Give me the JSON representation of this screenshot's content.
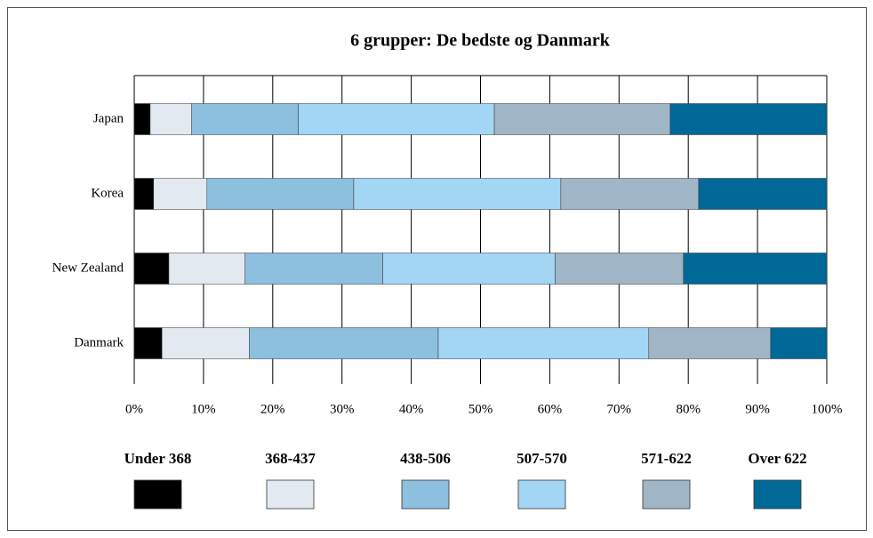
{
  "chart_data": {
    "type": "stacked-bar-horizontal",
    "title": "6 grupper: De bedste og Danmark",
    "categories": [
      "Japan",
      "Korea",
      "New Zealand",
      "Danmark"
    ],
    "series": [
      {
        "name": "Under 368",
        "color": "#000000",
        "values": [
          2.3,
          2.8,
          5.0,
          4.0
        ]
      },
      {
        "name": "368-437",
        "color": "#e2e9f0",
        "values": [
          6.0,
          7.7,
          11.0,
          12.6
        ]
      },
      {
        "name": "438-506",
        "color": "#8dbfdf",
        "values": [
          15.4,
          21.2,
          19.9,
          27.3
        ]
      },
      {
        "name": "507-570",
        "color": "#a3d5f5",
        "values": [
          28.3,
          29.9,
          24.9,
          30.4
        ]
      },
      {
        "name": "571-622",
        "color": "#a0b6c6",
        "values": [
          25.4,
          19.9,
          18.5,
          17.6
        ]
      },
      {
        "name": "Over 622",
        "color": "#006896",
        "values": [
          22.6,
          18.5,
          20.7,
          8.1
        ]
      }
    ],
    "xlim": [
      0,
      100
    ],
    "xticks": [
      {
        "value": 0,
        "label": "0%"
      },
      {
        "value": 10,
        "label": "10%"
      },
      {
        "value": 20,
        "label": "20%"
      },
      {
        "value": 30,
        "label": "30%"
      },
      {
        "value": 40,
        "label": "40%"
      },
      {
        "value": 50,
        "label": "50%"
      },
      {
        "value": 60,
        "label": "60%"
      },
      {
        "value": 70,
        "label": "70%"
      },
      {
        "value": 80,
        "label": "80%"
      },
      {
        "value": 90,
        "label": "90%"
      },
      {
        "value": 100,
        "label": "100%"
      }
    ],
    "grid": true,
    "legend": "bottom"
  }
}
